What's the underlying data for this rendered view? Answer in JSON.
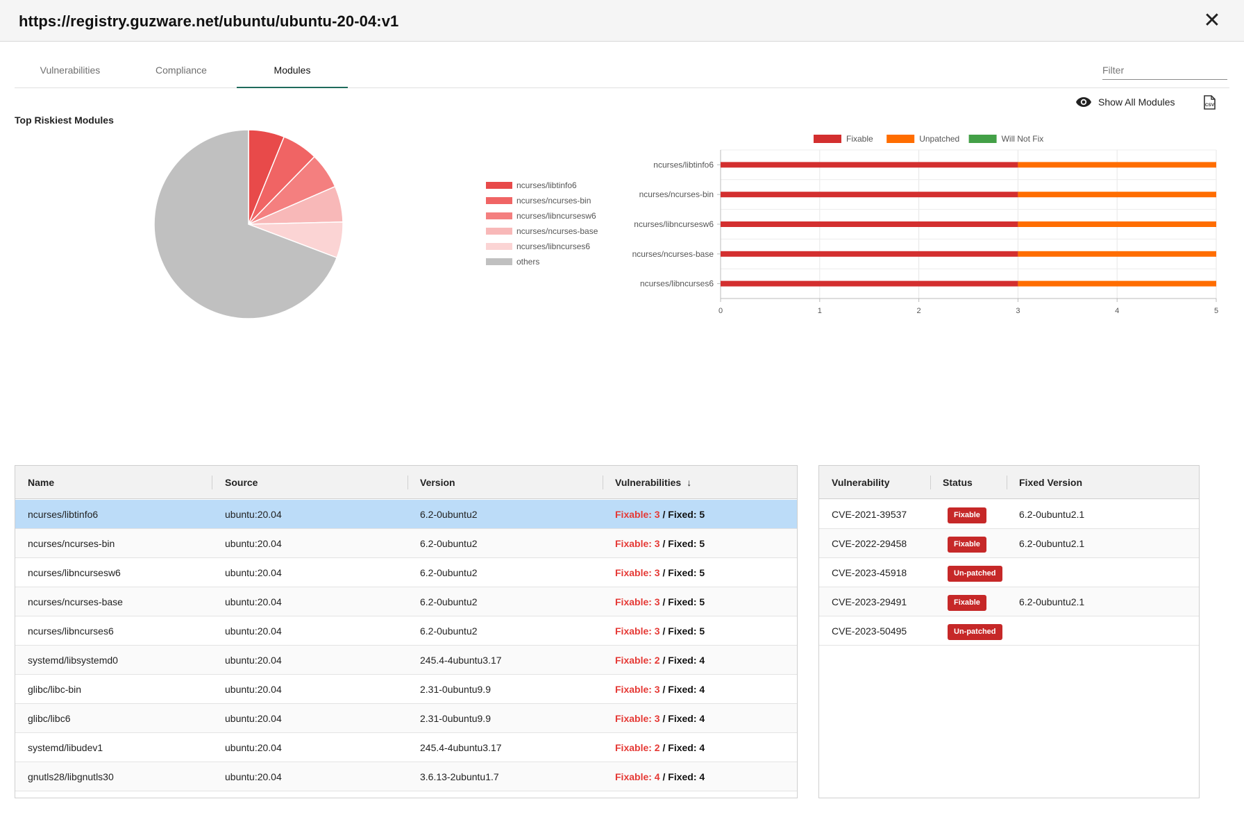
{
  "header": {
    "url": "https://registry.guzware.net/ubuntu/ubuntu-20-04:v1",
    "close_icon": "close-icon"
  },
  "tabs": [
    {
      "label": "Vulnerabilities",
      "active": false
    },
    {
      "label": "Compliance",
      "active": false
    },
    {
      "label": "Modules",
      "active": true
    }
  ],
  "filter": {
    "placeholder": "Filter",
    "value": ""
  },
  "toolbar": {
    "show_all_label": "Show All Modules",
    "show_all_icon": "eye-icon",
    "csv_icon": "csv-export-icon"
  },
  "section_title": "Top Riskiest Modules",
  "colors": {
    "fixable": "#d32f2f",
    "unpatched": "#ff6d00",
    "will_not_fix": "#43a047",
    "badge": "#c62828",
    "selected_row": "#bcdcf8",
    "tab_underline": "#1f6b5c"
  },
  "chart_data": [
    {
      "type": "pie",
      "title": "Top Riskiest Modules",
      "categories": [
        "ncurses/libtinfo6",
        "ncurses/ncurses-bin",
        "ncurses/libncursesw6",
        "ncurses/ncurses-base",
        "ncurses/libncurses6",
        "others"
      ],
      "values": [
        8,
        8,
        8,
        8,
        8,
        90
      ],
      "colors": [
        "#e84a4a",
        "#f06464",
        "#f47f7f",
        "#f8b8b8",
        "#fbd4d4",
        "#c0c0c0"
      ],
      "legend": "right"
    },
    {
      "type": "bar",
      "orientation": "horizontal",
      "stacked": true,
      "categories": [
        "ncurses/libtinfo6",
        "ncurses/ncurses-bin",
        "ncurses/libncursesw6",
        "ncurses/ncurses-base",
        "ncurses/libncurses6"
      ],
      "series": [
        {
          "name": "Fixable",
          "values": [
            3,
            3,
            3,
            3,
            3
          ],
          "color": "#d32f2f"
        },
        {
          "name": "Unpatched",
          "values": [
            2,
            2,
            2,
            2,
            2
          ],
          "color": "#ff6d00"
        },
        {
          "name": "Will Not Fix",
          "values": [
            0,
            0,
            0,
            0,
            0
          ],
          "color": "#43a047"
        }
      ],
      "xlim": [
        0,
        5
      ],
      "xticks": [
        "0",
        "1",
        "2",
        "3",
        "4",
        "5"
      ],
      "grid": true,
      "legend": "top"
    }
  ],
  "modules_table": {
    "columns": [
      "Name",
      "Source",
      "Version",
      "Vulnerabilities"
    ],
    "sort_icon": "sort-down-icon",
    "rows": [
      {
        "name": "ncurses/libtinfo6",
        "source": "ubuntu:20.04",
        "version": "6.2-0ubuntu2",
        "fixable": "Fixable: 3",
        "fixed": "Fixed: 5",
        "sep": " / ",
        "selected": true
      },
      {
        "name": "ncurses/ncurses-bin",
        "source": "ubuntu:20.04",
        "version": "6.2-0ubuntu2",
        "fixable": "Fixable: 3",
        "fixed": "Fixed: 5",
        "sep": " / ",
        "selected": false
      },
      {
        "name": "ncurses/libncursesw6",
        "source": "ubuntu:20.04",
        "version": "6.2-0ubuntu2",
        "fixable": "Fixable: 3",
        "fixed": "Fixed: 5",
        "sep": " / ",
        "selected": false
      },
      {
        "name": "ncurses/ncurses-base",
        "source": "ubuntu:20.04",
        "version": "6.2-0ubuntu2",
        "fixable": "Fixable: 3",
        "fixed": "Fixed: 5",
        "sep": " / ",
        "selected": false
      },
      {
        "name": "ncurses/libncurses6",
        "source": "ubuntu:20.04",
        "version": "6.2-0ubuntu2",
        "fixable": "Fixable: 3",
        "fixed": "Fixed: 5",
        "sep": " / ",
        "selected": false
      },
      {
        "name": "systemd/libsystemd0",
        "source": "ubuntu:20.04",
        "version": "245.4-4ubuntu3.17",
        "fixable": "Fixable: 2",
        "fixed": "Fixed: 4",
        "sep": " / ",
        "selected": false
      },
      {
        "name": "glibc/libc-bin",
        "source": "ubuntu:20.04",
        "version": "2.31-0ubuntu9.9",
        "fixable": "Fixable: 3",
        "fixed": "Fixed: 4",
        "sep": " / ",
        "selected": false
      },
      {
        "name": "glibc/libc6",
        "source": "ubuntu:20.04",
        "version": "2.31-0ubuntu9.9",
        "fixable": "Fixable: 3",
        "fixed": "Fixed: 4",
        "sep": " / ",
        "selected": false
      },
      {
        "name": "systemd/libudev1",
        "source": "ubuntu:20.04",
        "version": "245.4-4ubuntu3.17",
        "fixable": "Fixable: 2",
        "fixed": "Fixed: 4",
        "sep": " / ",
        "selected": false
      },
      {
        "name": "gnutls28/libgnutls30",
        "source": "ubuntu:20.04",
        "version": "3.6.13-2ubuntu1.7",
        "fixable": "Fixable: 4",
        "fixed": "Fixed: 4",
        "sep": " / ",
        "selected": false
      }
    ]
  },
  "vuln_table": {
    "columns": [
      "Vulnerability",
      "Status",
      "Fixed Version"
    ],
    "rows": [
      {
        "cve": "CVE-2021-39537",
        "status": "Fixable",
        "fixed_version": "6.2-0ubuntu2.1"
      },
      {
        "cve": "CVE-2022-29458",
        "status": "Fixable",
        "fixed_version": "6.2-0ubuntu2.1"
      },
      {
        "cve": "CVE-2023-45918",
        "status": "Un-patched",
        "fixed_version": ""
      },
      {
        "cve": "CVE-2023-29491",
        "status": "Fixable",
        "fixed_version": "6.2-0ubuntu2.1"
      },
      {
        "cve": "CVE-2023-50495",
        "status": "Un-patched",
        "fixed_version": ""
      }
    ]
  }
}
